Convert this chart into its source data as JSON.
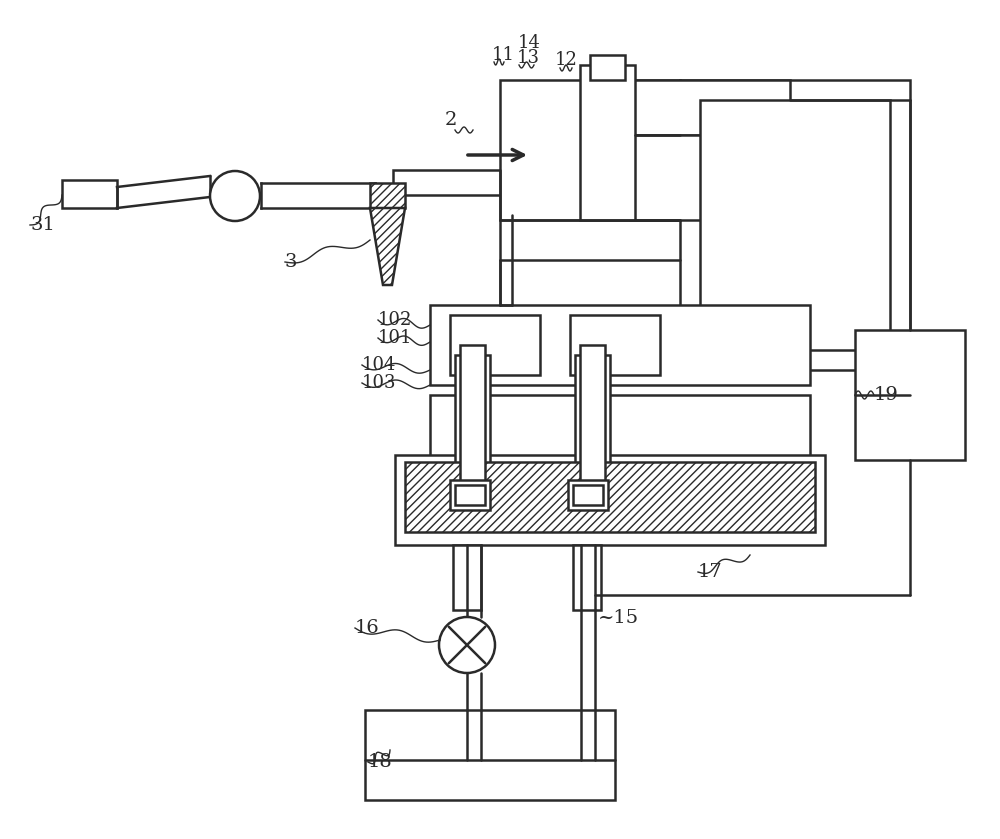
{
  "bg_color": "#ffffff",
  "lc": "#2a2a2a",
  "lw": 1.8,
  "fig_w": 10.0,
  "fig_h": 8.39,
  "dpi": 100
}
